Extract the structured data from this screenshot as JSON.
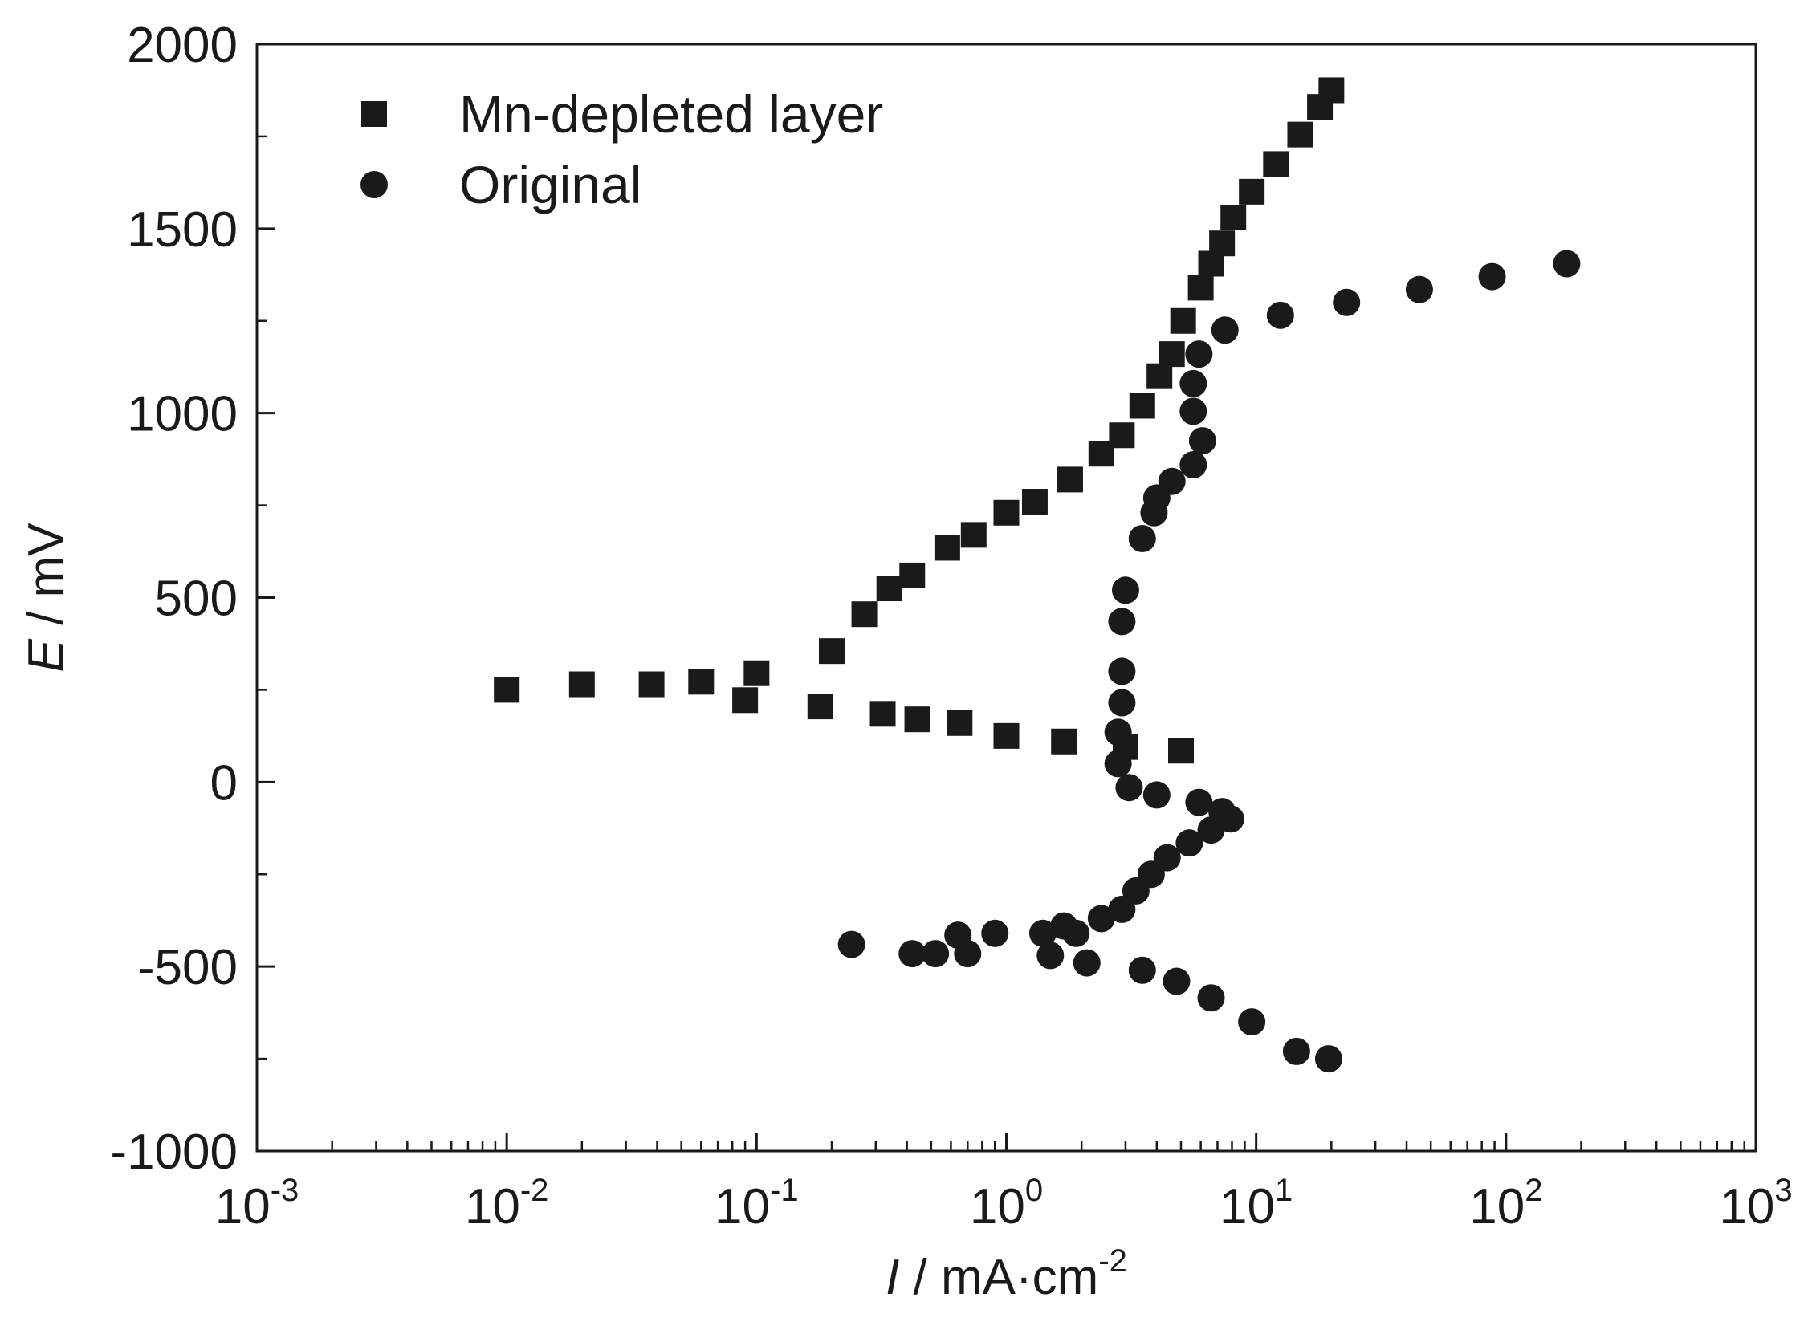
{
  "chart_data": {
    "type": "scatter",
    "xscale": "log",
    "xlim": [
      0.001,
      1000
    ],
    "ylim": [
      -1000,
      2000
    ],
    "xlabel": {
      "symbol": "I",
      "unit_prefix": " / mA·cm",
      "unit_exp": "-2"
    },
    "ylabel": {
      "symbol": "E",
      "unit": " / mV"
    },
    "x_ticks": [
      {
        "value": 0.001,
        "base": "10",
        "exp": "-3"
      },
      {
        "value": 0.01,
        "base": "10",
        "exp": "-2"
      },
      {
        "value": 0.1,
        "base": "10",
        "exp": "-1"
      },
      {
        "value": 1,
        "base": "10",
        "exp": "0"
      },
      {
        "value": 10,
        "base": "10",
        "exp": "1"
      },
      {
        "value": 100,
        "base": "10",
        "exp": "2"
      },
      {
        "value": 1000,
        "base": "10",
        "exp": "3"
      }
    ],
    "y_ticks": [
      {
        "value": -1000,
        "label": "-1000"
      },
      {
        "value": -500,
        "label": "-500"
      },
      {
        "value": 0,
        "label": "0"
      },
      {
        "value": 500,
        "label": "500"
      },
      {
        "value": 1000,
        "label": "1000"
      },
      {
        "value": 1500,
        "label": "1500"
      },
      {
        "value": 2000,
        "label": "2000"
      }
    ],
    "grid": false,
    "legend_position": "top-left",
    "series": [
      {
        "name": "Mn-depleted layer",
        "marker": "square",
        "color": "#1a1a1a",
        "points": [
          [
            0.01,
            250
          ],
          [
            0.02,
            265
          ],
          [
            0.038,
            265
          ],
          [
            0.06,
            272
          ],
          [
            0.1,
            295
          ],
          [
            0.09,
            222
          ],
          [
            0.18,
            205
          ],
          [
            0.32,
            185
          ],
          [
            0.44,
            170
          ],
          [
            0.65,
            160
          ],
          [
            1.0,
            125
          ],
          [
            1.7,
            110
          ],
          [
            3.0,
            95
          ],
          [
            5.0,
            85
          ],
          [
            0.2,
            355
          ],
          [
            0.27,
            455
          ],
          [
            0.34,
            525
          ],
          [
            0.42,
            560
          ],
          [
            0.58,
            635
          ],
          [
            0.74,
            670
          ],
          [
            1.0,
            730
          ],
          [
            1.3,
            760
          ],
          [
            1.8,
            820
          ],
          [
            2.4,
            890
          ],
          [
            2.9,
            940
          ],
          [
            3.5,
            1020
          ],
          [
            4.1,
            1100
          ],
          [
            4.6,
            1160
          ],
          [
            5.1,
            1250
          ],
          [
            6.0,
            1340
          ],
          [
            6.6,
            1405
          ],
          [
            7.3,
            1460
          ],
          [
            8.1,
            1530
          ],
          [
            9.6,
            1600
          ],
          [
            12,
            1675
          ],
          [
            15,
            1755
          ],
          [
            18,
            1830
          ],
          [
            20,
            1875
          ]
        ]
      },
      {
        "name": "Original",
        "marker": "circle",
        "color": "#1a1a1a",
        "points": [
          [
            0.24,
            -440
          ],
          [
            0.42,
            -465
          ],
          [
            0.52,
            -465
          ],
          [
            0.7,
            -465
          ],
          [
            0.64,
            -415
          ],
          [
            0.9,
            -410
          ],
          [
            1.4,
            -410
          ],
          [
            1.5,
            -470
          ],
          [
            1.7,
            -390
          ],
          [
            1.9,
            -410
          ],
          [
            2.1,
            -490
          ],
          [
            2.4,
            -370
          ],
          [
            2.9,
            -345
          ],
          [
            3.3,
            -295
          ],
          [
            3.8,
            -250
          ],
          [
            4.4,
            -205
          ],
          [
            5.4,
            -165
          ],
          [
            6.6,
            -130
          ],
          [
            7.3,
            -80
          ],
          [
            7.9,
            -100
          ],
          [
            5.9,
            -55
          ],
          [
            4.0,
            -35
          ],
          [
            3.1,
            -15
          ],
          [
            3.5,
            -510
          ],
          [
            4.8,
            -540
          ],
          [
            6.6,
            -585
          ],
          [
            9.6,
            -650
          ],
          [
            14.5,
            -730
          ],
          [
            19.5,
            -750
          ],
          [
            2.8,
            50
          ],
          [
            2.8,
            135
          ],
          [
            2.9,
            215
          ],
          [
            2.9,
            300
          ],
          [
            2.9,
            435
          ],
          [
            3.0,
            520
          ],
          [
            3.5,
            660
          ],
          [
            3.9,
            730
          ],
          [
            4.0,
            770
          ],
          [
            4.6,
            815
          ],
          [
            5.6,
            860
          ],
          [
            6.1,
            925
          ],
          [
            5.6,
            1005
          ],
          [
            5.6,
            1080
          ],
          [
            5.9,
            1160
          ],
          [
            7.5,
            1225
          ],
          [
            12.5,
            1265
          ],
          [
            23,
            1300
          ],
          [
            45,
            1335
          ],
          [
            88,
            1370
          ],
          [
            175,
            1405
          ]
        ]
      }
    ]
  }
}
